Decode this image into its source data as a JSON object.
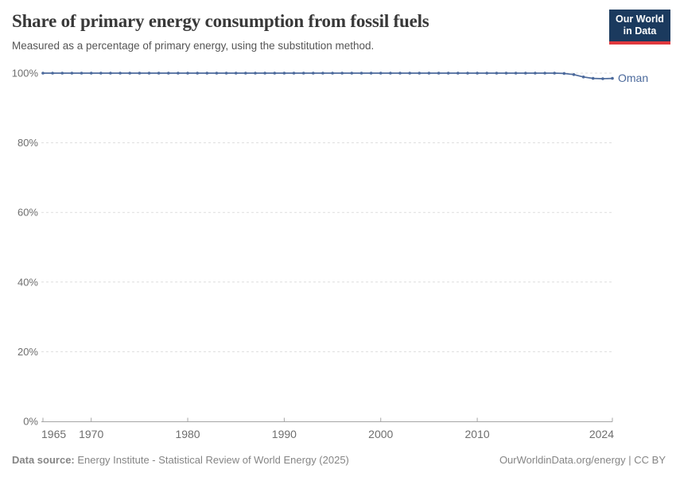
{
  "header": {
    "title": "Share of primary energy consumption from fossil fuels",
    "subtitle": "Measured as a percentage of primary energy, using the substitution method.",
    "logo": {
      "line1": "Our World",
      "line2": "in Data"
    }
  },
  "chart_data": {
    "type": "line",
    "title": "Share of primary energy consumption from fossil fuels",
    "subtitle": "Measured as a percentage of primary energy, using the substitution method.",
    "xlabel": "",
    "ylabel": "",
    "xlim": [
      1965,
      2024
    ],
    "ylim": [
      0,
      100
    ],
    "x_ticks": [
      1965,
      1970,
      1980,
      1990,
      2000,
      2010,
      2024
    ],
    "y_ticks": [
      0,
      20,
      40,
      60,
      80,
      100
    ],
    "y_tick_suffix": "%",
    "grid": "horizontal-dashed",
    "legend": "end-of-line-label",
    "x": [
      1965,
      1966,
      1967,
      1968,
      1969,
      1970,
      1971,
      1972,
      1973,
      1974,
      1975,
      1976,
      1977,
      1978,
      1979,
      1980,
      1981,
      1982,
      1983,
      1984,
      1985,
      1986,
      1987,
      1988,
      1989,
      1990,
      1991,
      1992,
      1993,
      1994,
      1995,
      1996,
      1997,
      1998,
      1999,
      2000,
      2001,
      2002,
      2003,
      2004,
      2005,
      2006,
      2007,
      2008,
      2009,
      2010,
      2011,
      2012,
      2013,
      2014,
      2015,
      2016,
      2017,
      2018,
      2019,
      2020,
      2021,
      2022,
      2023,
      2024
    ],
    "series": [
      {
        "name": "Oman",
        "color": "#4C6A9C",
        "values": [
          100,
          100,
          100,
          100,
          100,
          100,
          100,
          100,
          100,
          100,
          100,
          100,
          100,
          100,
          100,
          100,
          100,
          100,
          100,
          100,
          100,
          100,
          100,
          100,
          100,
          100,
          100,
          100,
          100,
          100,
          100,
          100,
          100,
          100,
          100,
          100,
          100,
          100,
          100,
          100,
          100,
          100,
          100,
          100,
          100,
          100,
          100,
          100,
          100,
          100,
          100,
          100,
          100,
          100,
          99.9,
          99.6,
          98.9,
          98.5,
          98.4,
          98.5
        ]
      }
    ]
  },
  "footer": {
    "datasource_label": "Data source:",
    "datasource_text": " Energy Institute - Statistical Review of World Energy (2025)",
    "attribution": "OurWorldinData.org/energy | CC BY"
  },
  "colors": {
    "line": "#4C6A9C",
    "grid": "#DDDDDD",
    "axis": "#A5A5A5",
    "tick_text": "#6E6E6E",
    "title": "#383838",
    "subtitle": "#555555",
    "footer": "#858585",
    "logo_bg": "#1B3A5E",
    "logo_red": "#E0393E"
  }
}
